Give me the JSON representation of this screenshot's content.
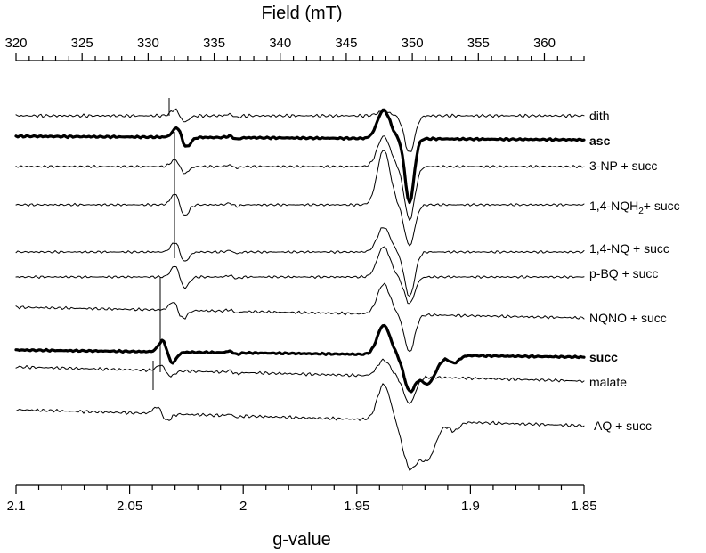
{
  "chart_data": {
    "type": "line",
    "title": "",
    "top_axis": {
      "label": "Field (mT)",
      "range": [
        320,
        363
      ],
      "major_ticks": [
        320,
        325,
        330,
        335,
        340,
        345,
        350,
        355,
        360
      ],
      "tick_labels": [
        "320",
        "325",
        "330",
        "335",
        "340",
        "345",
        "350",
        "355",
        "360"
      ]
    },
    "bottom_axis": {
      "label": "g-value",
      "major_ticks": [
        2.1,
        2.05,
        2.0,
        1.95,
        1.9,
        1.85
      ],
      "tick_labels": [
        "2.1",
        "2.05",
        "2",
        "1.95",
        "1.9",
        "1.85"
      ]
    },
    "y_axis": {
      "label": "",
      "units": "arbitrary"
    },
    "series": [
      {
        "name": "dith",
        "bold": false
      },
      {
        "name": "asc",
        "bold": true
      },
      {
        "name": "3-NP + succ",
        "bold": false
      },
      {
        "name": "1,4-NQH2+ succ",
        "bold": false,
        "display": {
          "main": "1,4-NQH",
          "sub": "2",
          "rest": "+ succ"
        }
      },
      {
        "name": "1,4-NQ + succ",
        "bold": false
      },
      {
        "name": "p-BQ + succ",
        "bold": false
      },
      {
        "name": "NQNO + succ",
        "bold": false
      },
      {
        "name": "succ",
        "bold": true
      },
      {
        "name": "malate",
        "bold": false
      },
      {
        "name": "AQ + succ",
        "bold": false
      }
    ],
    "grid": false,
    "legend": "labels at right end of each trace"
  }
}
